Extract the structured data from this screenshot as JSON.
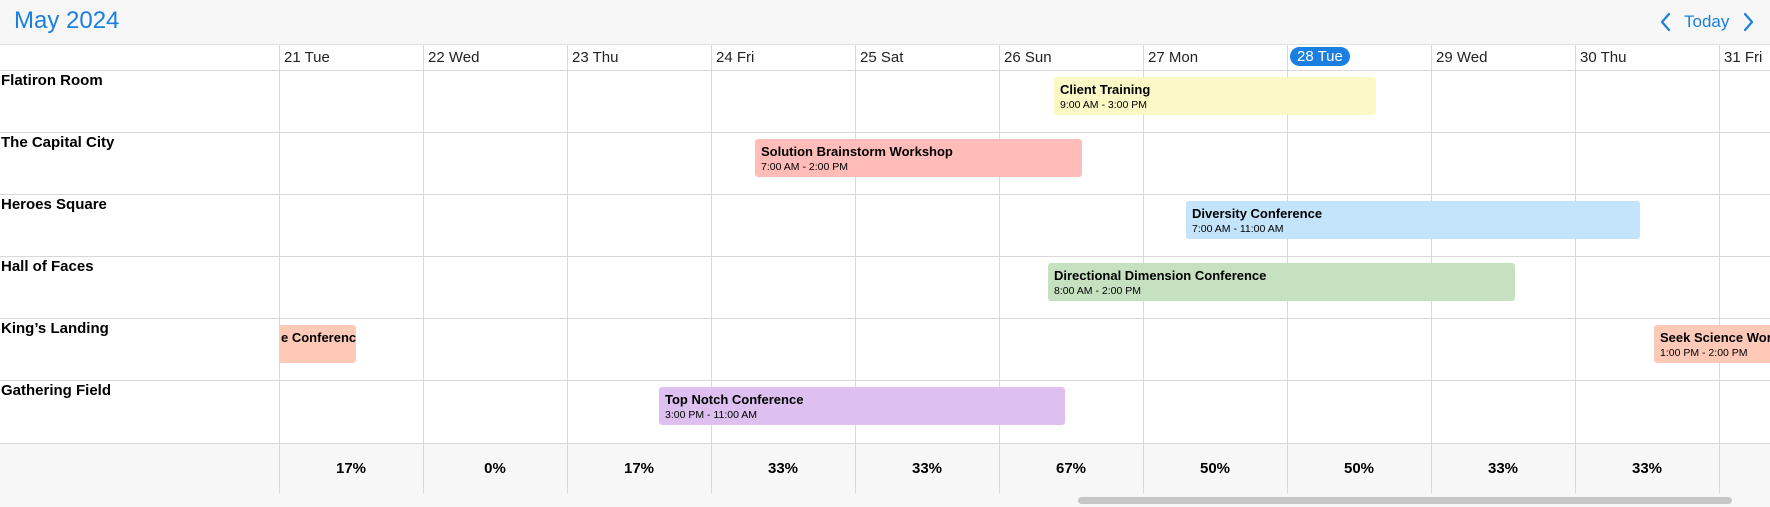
{
  "header": {
    "title": "May 2024",
    "today_label": "Today",
    "accent_color": "#1a7fe0",
    "prev_icon": "chevron-left-icon",
    "next_icon": "chevron-right-icon"
  },
  "days": [
    {
      "label": "21 Tue",
      "today": false
    },
    {
      "label": "22 Wed",
      "today": false
    },
    {
      "label": "23 Thu",
      "today": false
    },
    {
      "label": "24 Fri",
      "today": false
    },
    {
      "label": "25 Sat",
      "today": false
    },
    {
      "label": "26 Sun",
      "today": false
    },
    {
      "label": "27 Mon",
      "today": false
    },
    {
      "label": "28 Tue",
      "today": true
    },
    {
      "label": "29 Wed",
      "today": false
    },
    {
      "label": "30 Thu",
      "today": false
    },
    {
      "label": "31 Fri",
      "today": false
    }
  ],
  "resources": [
    "Flatiron Room",
    "The Capital City",
    "Heroes Square",
    "Hall of Faces",
    "King’s Landing",
    "Gathering Field"
  ],
  "events": [
    {
      "title": "Client Training",
      "time": "9:00 AM - 3:00 PM",
      "color": "#fdf9c7"
    },
    {
      "title": "Solution Brainstorm Workshop",
      "time": "7:00 AM - 2:00 PM",
      "color": "#ffbcb8"
    },
    {
      "title": "Diversity Conference",
      "time": "7:00 AM - 11:00 AM",
      "color": "#c3e4fb"
    },
    {
      "title": "Directional Dimension Conference",
      "time": "8:00 AM - 2:00 PM",
      "color": "#c5e1c0"
    },
    {
      "title": "e Conference",
      "time": "",
      "color": "#ffc9b8"
    },
    {
      "title": "Seek Science Work",
      "time": "1:00 PM - 2:00 PM",
      "color": "#ffc9b8"
    },
    {
      "title": "Top Notch Conference",
      "time": "3:00 PM - 11:00 AM",
      "color": "#dec0f0"
    }
  ],
  "utilization": [
    "17%",
    "0%",
    "17%",
    "33%",
    "33%",
    "67%",
    "50%",
    "50%",
    "33%",
    "33%",
    ""
  ]
}
